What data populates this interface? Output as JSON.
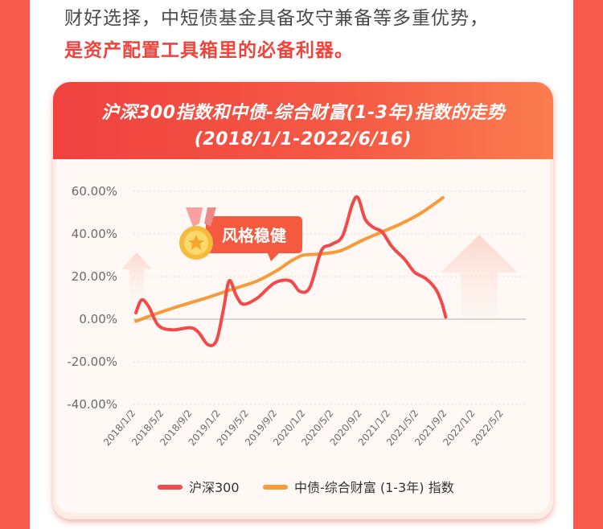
{
  "intro": {
    "line1": "财好选择，中短债基金具备攻守兼备等多重优势，",
    "line2": "是资产配置工具箱里的必备利器。"
  },
  "badge": {
    "label": "风格稳健",
    "icon": "medal-star-icon"
  },
  "colors": {
    "background": "#f85a4d",
    "series_csi300": "#f24a48",
    "series_bond": "#f89a3a",
    "header": "#f0413e"
  },
  "chart_data": {
    "type": "line",
    "title": "沪深300指数和中债-综合财富(1-3年)指数的走势",
    "subtitle": "(2018/1/1-2022/6/16)",
    "xlabel": "",
    "ylabel": "",
    "x_ticks": [
      "2018/1/2",
      "2018/5/2",
      "2018/9/2",
      "2019/1/2",
      "2019/5/2",
      "2019/9/2",
      "2020/1/2",
      "2020/5/2",
      "2020/9/2",
      "2021/1/2",
      "2021/5/2",
      "2021/9/2",
      "2022/1/2",
      "2022/5/2"
    ],
    "y_ticks": [
      "60.00%",
      "40.00%",
      "20.00%",
      "0.00%",
      "-20.00%",
      "-40.00%"
    ],
    "ylim": [
      -40,
      60
    ],
    "y_unit": "%",
    "grid": true,
    "legend_position": "bottom",
    "series": [
      {
        "name": "沪深300",
        "points": [
          [
            0,
            3
          ],
          [
            0.2,
            9
          ],
          [
            0.45,
            6
          ],
          [
            0.8,
            -3
          ],
          [
            1.3,
            -5
          ],
          [
            1.9,
            -4
          ],
          [
            2.2,
            -6
          ],
          [
            2.55,
            -12
          ],
          [
            2.85,
            -10
          ],
          [
            3.1,
            5
          ],
          [
            3.3,
            18
          ],
          [
            3.55,
            11
          ],
          [
            3.8,
            7
          ],
          [
            4.3,
            10
          ],
          [
            4.9,
            17
          ],
          [
            5.45,
            18
          ],
          [
            5.8,
            13
          ],
          [
            6.15,
            15
          ],
          [
            6.55,
            32
          ],
          [
            6.9,
            35
          ],
          [
            7.3,
            39
          ],
          [
            7.65,
            54
          ],
          [
            7.85,
            57
          ],
          [
            8.1,
            47
          ],
          [
            8.4,
            43
          ],
          [
            8.7,
            41
          ],
          [
            9.05,
            34
          ],
          [
            9.5,
            28
          ],
          [
            9.85,
            22
          ],
          [
            10.25,
            19
          ],
          [
            10.6,
            14
          ],
          [
            10.8,
            8
          ],
          [
            10.95,
            1
          ]
        ]
      },
      {
        "name": "中债-综合财富 (1-3年) 指数",
        "points": [
          [
            0,
            -1
          ],
          [
            0.6,
            2
          ],
          [
            1.5,
            6
          ],
          [
            2.5,
            10
          ],
          [
            3.4,
            14
          ],
          [
            4.3,
            18
          ],
          [
            5.0,
            23
          ],
          [
            5.45,
            27
          ],
          [
            5.9,
            30
          ],
          [
            6.4,
            30.5
          ],
          [
            7.2,
            32
          ],
          [
            8.0,
            37
          ],
          [
            8.7,
            41
          ],
          [
            9.4,
            45
          ],
          [
            10.1,
            50
          ],
          [
            10.85,
            57
          ]
        ]
      }
    ]
  }
}
